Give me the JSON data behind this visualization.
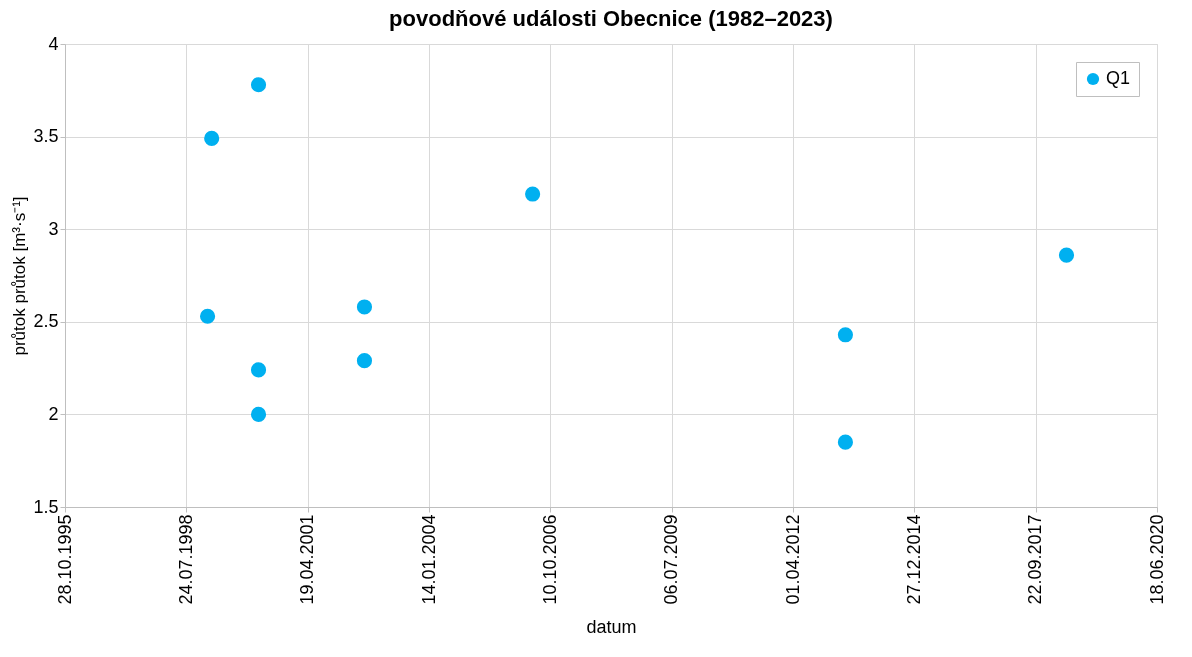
{
  "chart_data": {
    "type": "scatter",
    "title": "povodňové události Obecnice (1982–2023)",
    "xlabel": "datum",
    "ylabel": "průtok průtok [m³·s⁻¹]",
    "x": [
      "1999-01-15",
      "1999-02-18",
      "2000-03-10",
      "2000-03-10",
      "2000-03-10",
      "2002-07-31",
      "2002-07-31",
      "2006-05-17",
      "2013-06-07",
      "2013-06-07",
      "2018-06-03"
    ],
    "series": [
      {
        "name": "Q1",
        "color": "#00b0f0",
        "values": [
          2.53,
          3.49,
          3.78,
          2.24,
          2.0,
          2.58,
          2.29,
          3.19,
          2.43,
          1.85,
          2.86
        ]
      }
    ],
    "xlim": [
      "1995-10-28",
      "2020-06-18"
    ],
    "xticks": [
      {
        "value": "1995-10-28",
        "label": "28.10.1995"
      },
      {
        "value": "1998-07-24",
        "label": "24.07.1998"
      },
      {
        "value": "2001-04-19",
        "label": "19.04.2001"
      },
      {
        "value": "2004-01-14",
        "label": "14.01.2004"
      },
      {
        "value": "2006-10-10",
        "label": "10.10.2006"
      },
      {
        "value": "2009-07-06",
        "label": "06.07.2009"
      },
      {
        "value": "2012-04-01",
        "label": "01.04.2012"
      },
      {
        "value": "2014-12-27",
        "label": "27.12.2014"
      },
      {
        "value": "2017-09-22",
        "label": "22.09.2017"
      },
      {
        "value": "2020-06-18",
        "label": "18.06.2020"
      }
    ],
    "ylim": [
      1.5,
      4
    ],
    "yticks": [
      1.5,
      2,
      2.5,
      3,
      3.5,
      4
    ],
    "grid": true,
    "legend": "top right",
    "marker": "circle"
  }
}
